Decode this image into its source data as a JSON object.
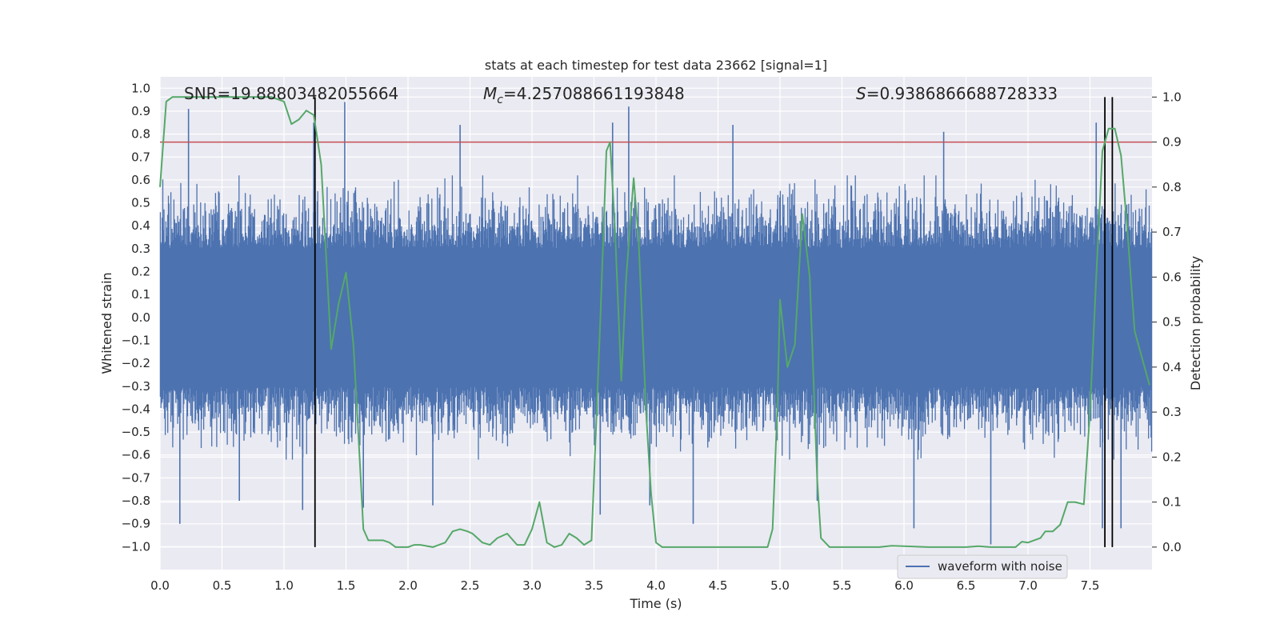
{
  "chart_data": {
    "type": "line",
    "title": "stats at each timestep for test data 23662 [signal=1]",
    "xlabel": "Time (s)",
    "ylabel": "Whitened strain",
    "y2label": "Detection probability",
    "xlim": [
      0,
      8
    ],
    "ylim": [
      -1.1,
      1.05
    ],
    "y2lim": [
      -0.05,
      1.045
    ],
    "xticks": [
      "0.0",
      "0.5",
      "1.0",
      "1.5",
      "2.0",
      "2.5",
      "3.0",
      "3.5",
      "4.0",
      "4.5",
      "5.0",
      "5.5",
      "6.0",
      "6.5",
      "7.0",
      "7.5"
    ],
    "yticks": [
      "1.0",
      "0.9",
      "0.8",
      "0.7",
      "0.6",
      "0.5",
      "0.4",
      "0.3",
      "0.2",
      "0.1",
      "0.0",
      "−0.1",
      "−0.2",
      "−0.3",
      "−0.4",
      "−0.5",
      "−0.6",
      "−0.7",
      "−0.8",
      "−0.9",
      "−1.0"
    ],
    "y2ticks": [
      "1.0",
      "0.9",
      "0.8",
      "0.7",
      "0.6",
      "0.5",
      "0.4",
      "0.3",
      "0.2",
      "0.1",
      "0.0"
    ],
    "grid": true,
    "annotations": {
      "snr": "SNR=19.88803482055664",
      "mc_symbol": "M",
      "mc_sub": "c",
      "mc_value": "=4.257088661193848",
      "s_symbol": "S",
      "s_value": "=0.9386866688728333"
    },
    "threshold_probability": 0.9,
    "event_markers_s": [
      1.25,
      7.62,
      7.68
    ],
    "waveform": {
      "name": "waveform with noise",
      "color": "#4c72b0",
      "typical_envelope": [
        -0.55,
        0.55
      ],
      "peaks": [
        {
          "t": 0.23,
          "v": 0.91
        },
        {
          "t": 1.24,
          "v": 0.85
        },
        {
          "t": 1.49,
          "v": 0.94
        },
        {
          "t": 2.42,
          "v": 0.84
        },
        {
          "t": 3.78,
          "v": 0.92
        },
        {
          "t": 3.65,
          "v": 0.85
        },
        {
          "t": 4.62,
          "v": 0.84
        },
        {
          "t": 6.32,
          "v": 0.81
        },
        {
          "t": 7.55,
          "v": 0.85
        },
        {
          "t": 0.16,
          "v": -0.9
        },
        {
          "t": 0.64,
          "v": -0.8
        },
        {
          "t": 1.15,
          "v": -0.84
        },
        {
          "t": 1.64,
          "v": -0.83
        },
        {
          "t": 2.2,
          "v": -0.82
        },
        {
          "t": 3.55,
          "v": -0.86
        },
        {
          "t": 3.95,
          "v": -0.82
        },
        {
          "t": 4.3,
          "v": -0.9
        },
        {
          "t": 5.3,
          "v": -0.8
        },
        {
          "t": 6.08,
          "v": -0.92
        },
        {
          "t": 6.7,
          "v": -0.99
        },
        {
          "t": 7.6,
          "v": -0.92
        },
        {
          "t": 7.75,
          "v": -0.92
        }
      ]
    },
    "probability": {
      "color": "#55a868",
      "t": [
        0.0,
        0.05,
        0.1,
        0.2,
        0.3,
        0.5,
        0.7,
        0.9,
        1.0,
        1.06,
        1.12,
        1.18,
        1.24,
        1.3,
        1.38,
        1.44,
        1.5,
        1.56,
        1.6,
        1.64,
        1.68,
        1.75,
        1.8,
        1.85,
        1.9,
        1.95,
        2.0,
        2.05,
        2.1,
        2.2,
        2.3,
        2.36,
        2.42,
        2.48,
        2.52,
        2.6,
        2.66,
        2.72,
        2.8,
        2.88,
        2.94,
        3.0,
        3.06,
        3.12,
        3.18,
        3.24,
        3.3,
        3.36,
        3.42,
        3.48,
        3.55,
        3.6,
        3.63,
        3.67,
        3.72,
        3.76,
        3.82,
        3.86,
        3.92,
        3.96,
        4.0,
        4.05,
        4.1,
        4.2,
        4.3,
        4.5,
        4.7,
        4.9,
        4.94,
        4.98,
        5.0,
        5.06,
        5.12,
        5.18,
        5.24,
        5.3,
        5.33,
        5.4,
        5.6,
        5.8,
        5.9,
        6.0,
        6.2,
        6.4,
        6.5,
        6.6,
        6.7,
        6.8,
        6.9,
        6.95,
        7.0,
        7.1,
        7.14,
        7.2,
        7.26,
        7.32,
        7.38,
        7.45,
        7.5,
        7.55,
        7.6,
        7.65,
        7.7,
        7.75,
        7.8,
        7.86,
        7.92,
        7.98
      ],
      "v": [
        0.8,
        0.99,
        1.0,
        1.0,
        1.0,
        1.0,
        1.0,
        1.0,
        0.99,
        0.94,
        0.95,
        0.97,
        0.96,
        0.85,
        0.44,
        0.54,
        0.61,
        0.45,
        0.25,
        0.04,
        0.015,
        0.015,
        0.015,
        0.01,
        0.0,
        0.0,
        0.0,
        0.005,
        0.005,
        0.0,
        0.01,
        0.035,
        0.04,
        0.035,
        0.03,
        0.01,
        0.005,
        0.02,
        0.03,
        0.005,
        0.005,
        0.04,
        0.1,
        0.01,
        0.0,
        0.005,
        0.03,
        0.02,
        0.005,
        0.015,
        0.5,
        0.88,
        0.9,
        0.7,
        0.37,
        0.6,
        0.82,
        0.68,
        0.3,
        0.12,
        0.01,
        0.0,
        0.0,
        0.0,
        0.0,
        0.0,
        0.0,
        0.0,
        0.04,
        0.32,
        0.55,
        0.4,
        0.45,
        0.74,
        0.6,
        0.15,
        0.02,
        0.0,
        0.0,
        0.0,
        0.003,
        0.002,
        0.0,
        0.0,
        0.0,
        0.002,
        0.0,
        0.0,
        0.0,
        0.012,
        0.01,
        0.02,
        0.035,
        0.035,
        0.05,
        0.1,
        0.1,
        0.095,
        0.3,
        0.6,
        0.88,
        0.93,
        0.93,
        0.87,
        0.71,
        0.48,
        0.42,
        0.36
      ]
    },
    "threshold_color": "#c44e52",
    "marker_color": "#000000",
    "plot_bg": "#eaeaf2",
    "grid_color": "#ffffff"
  }
}
